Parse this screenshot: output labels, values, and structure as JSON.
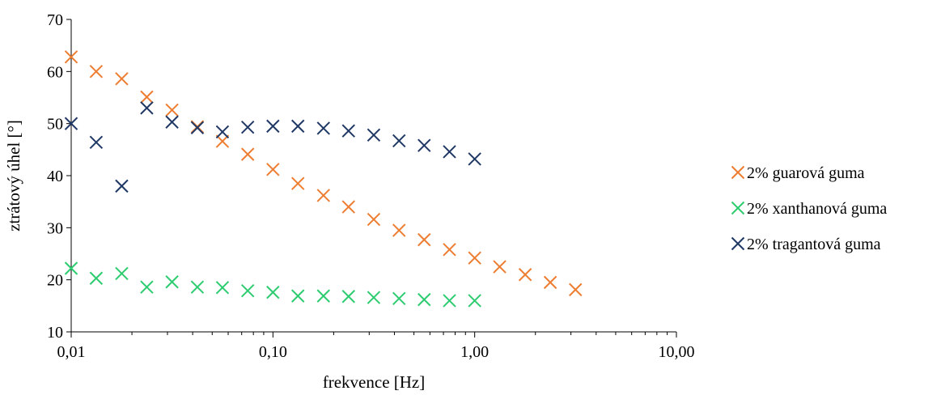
{
  "chart_data": {
    "type": "scatter",
    "title": "",
    "xlabel": "frekvence [Hz]",
    "ylabel": "ztrátový úhel [°]",
    "xscale": "log",
    "xlim": [
      0.01,
      10
    ],
    "ylim": [
      10,
      70
    ],
    "xticks": [
      0.01,
      0.1,
      1,
      10
    ],
    "xtick_labels": [
      "0,01",
      "0,10",
      "1,00",
      "10,00"
    ],
    "yticks": [
      10,
      20,
      30,
      40,
      50,
      60,
      70
    ],
    "ytick_labels": [
      "10",
      "20",
      "30",
      "40",
      "50",
      "60",
      "70"
    ],
    "grid": false,
    "legend_position": "right",
    "marker": "x",
    "series": [
      {
        "name": "2% guarová guma",
        "color": "#ED7D31",
        "x": [
          0.01,
          0.0133,
          0.0178,
          0.0237,
          0.0316,
          0.0422,
          0.0562,
          0.075,
          0.1,
          0.133,
          0.178,
          0.237,
          0.316,
          0.422,
          0.562,
          0.75,
          1.0,
          1.33,
          1.78,
          2.37,
          3.16
        ],
        "y": [
          62.8,
          60.0,
          58.6,
          55.1,
          52.6,
          49.4,
          46.6,
          44.1,
          41.2,
          38.5,
          36.2,
          34.0,
          31.6,
          29.5,
          27.7,
          25.8,
          24.2,
          22.5,
          21.0,
          19.5,
          18.1
        ]
      },
      {
        "name": "2% xanthanová guma",
        "color": "#2ECC71",
        "x": [
          0.01,
          0.0133,
          0.0178,
          0.0237,
          0.0316,
          0.0422,
          0.0562,
          0.075,
          0.1,
          0.133,
          0.178,
          0.237,
          0.316,
          0.422,
          0.562,
          0.75,
          1.0
        ],
        "y": [
          22.2,
          20.3,
          21.2,
          18.6,
          19.6,
          18.6,
          18.5,
          17.9,
          17.6,
          16.9,
          16.9,
          16.8,
          16.6,
          16.4,
          16.2,
          16.0,
          16.0
        ]
      },
      {
        "name": "2% tragantová guma",
        "color": "#1F3864",
        "x": [
          0.01,
          0.0133,
          0.0178,
          0.0237,
          0.0316,
          0.0422,
          0.0562,
          0.075,
          0.1,
          0.133,
          0.178,
          0.237,
          0.316,
          0.422,
          0.562,
          0.75,
          1.0
        ],
        "y": [
          50.0,
          46.4,
          38.0,
          53.0,
          50.3,
          49.2,
          48.4,
          49.3,
          49.5,
          49.5,
          49.1,
          48.6,
          47.8,
          46.7,
          45.8,
          44.6,
          43.2
        ]
      }
    ]
  }
}
